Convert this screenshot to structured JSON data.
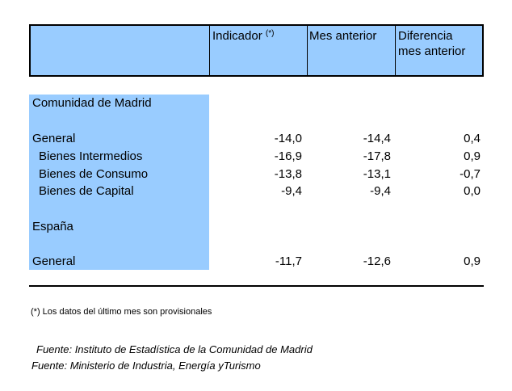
{
  "header": {
    "col_indicador": "Indicador",
    "col_indicador_sup": "(*)",
    "col_mes_anterior": "Mes anterior",
    "col_diferencia_line1": "Diferencia",
    "col_diferencia_line2": "mes anterior"
  },
  "sections": [
    {
      "title": "Comunidad de Madrid",
      "rows": [
        {
          "label": "General",
          "indicador": "-14,0",
          "mes_anterior": "-14,4",
          "diferencia": "0,4"
        },
        {
          "label": "Bienes Intermedios",
          "indicador": "-16,9",
          "mes_anterior": "-17,8",
          "diferencia": "0,9"
        },
        {
          "label": "Bienes de Consumo",
          "indicador": "-13,8",
          "mes_anterior": "-13,1",
          "diferencia": "-0,7"
        },
        {
          "label": "Bienes de Capital",
          "indicador": "-9,4",
          "mes_anterior": "-9,4",
          "diferencia": "0,0"
        }
      ]
    },
    {
      "title": "España",
      "rows": [
        {
          "label": "General",
          "indicador": "-11,7",
          "mes_anterior": "-12,6",
          "diferencia": "0,9"
        }
      ]
    }
  ],
  "footnote": "(*) Los datos del último mes son provisionales",
  "sources": [
    "Fuente: Instituto de Estadística de la Comunidad de Madrid",
    "Fuente: Ministerio de Industria, Energía yTurismo"
  ]
}
